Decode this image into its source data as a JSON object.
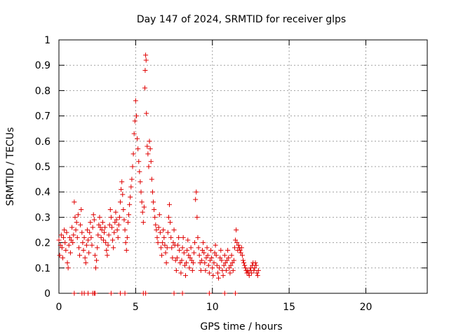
{
  "chart_data": {
    "type": "scatter",
    "title": "Day 147 of 2024, SRMTID for receiver glps",
    "xlabel": "GPS time / hours",
    "ylabel": "SRMTID / TECUs",
    "xlim": [
      0,
      24
    ],
    "ylim": [
      0,
      1
    ],
    "xticks": [
      0,
      5,
      10,
      15,
      20
    ],
    "xtick_labels": [
      "0",
      "5",
      "10",
      "15",
      "20"
    ],
    "yticks": [
      0,
      0.1,
      0.2,
      0.3,
      0.4,
      0.5,
      0.6,
      0.7,
      0.8,
      0.9,
      1
    ],
    "ytick_labels": [
      "0",
      "0.1",
      "0.2",
      "0.3",
      "0.4",
      "0.5",
      "0.6",
      "0.7",
      "0.8",
      "0.9",
      "1"
    ],
    "grid": true,
    "marker": "+",
    "marker_color": "#e00000",
    "series": [
      {
        "name": "SRMTID",
        "points": [
          [
            0.0,
            0.21
          ],
          [
            0.05,
            0.15
          ],
          [
            0.1,
            0.19
          ],
          [
            0.15,
            0.23
          ],
          [
            0.2,
            0.18
          ],
          [
            0.25,
            0.14
          ],
          [
            0.3,
            0.22
          ],
          [
            0.35,
            0.25
          ],
          [
            0.4,
            0.2
          ],
          [
            0.45,
            0.17
          ],
          [
            0.5,
            0.24
          ],
          [
            0.55,
            0.12
          ],
          [
            0.6,
            0.1
          ],
          [
            0.65,
            0.19
          ],
          [
            0.7,
            0.22
          ],
          [
            0.75,
            0.16
          ],
          [
            0.8,
            0.21
          ],
          [
            0.85,
            0.26
          ],
          [
            0.9,
            0.2
          ],
          [
            0.95,
            0.23
          ],
          [
            1.0,
            0.36
          ],
          [
            1.05,
            0.3
          ],
          [
            1.1,
            0.25
          ],
          [
            1.15,
            0.28
          ],
          [
            1.2,
            0.22
          ],
          [
            1.25,
            0.31
          ],
          [
            1.3,
            0.18
          ],
          [
            1.35,
            0.15
          ],
          [
            1.4,
            0.27
          ],
          [
            1.45,
            0.33
          ],
          [
            1.5,
            0.24
          ],
          [
            1.55,
            0.2
          ],
          [
            1.6,
            0.17
          ],
          [
            1.65,
            0.22
          ],
          [
            1.7,
            0.14
          ],
          [
            1.75,
            0.12
          ],
          [
            1.8,
            0.19
          ],
          [
            1.85,
            0.25
          ],
          [
            1.9,
            0.21
          ],
          [
            1.95,
            0.16
          ],
          [
            2.0,
            0.24
          ],
          [
            2.05,
            0.28
          ],
          [
            2.1,
            0.22
          ],
          [
            2.15,
            0.19
          ],
          [
            2.2,
            0.26
          ],
          [
            2.25,
            0.31
          ],
          [
            2.3,
            0.29
          ],
          [
            2.35,
            0.15
          ],
          [
            2.4,
            0.1
          ],
          [
            2.45,
            0.13
          ],
          [
            2.5,
            0.18
          ],
          [
            2.55,
            0.23
          ],
          [
            2.6,
            0.27
          ],
          [
            2.65,
            0.3
          ],
          [
            2.7,
            0.26
          ],
          [
            2.75,
            0.22
          ],
          [
            2.8,
            0.25
          ],
          [
            2.85,
            0.28
          ],
          [
            2.9,
            0.21
          ],
          [
            2.95,
            0.24
          ],
          [
            3.0,
            0.26
          ],
          [
            3.05,
            0.2
          ],
          [
            3.1,
            0.17
          ],
          [
            3.15,
            0.15
          ],
          [
            3.2,
            0.19
          ],
          [
            3.25,
            0.23
          ],
          [
            3.3,
            0.27
          ],
          [
            3.35,
            0.33
          ],
          [
            3.4,
            0.3
          ],
          [
            3.45,
            0.26
          ],
          [
            3.5,
            0.21
          ],
          [
            3.55,
            0.18
          ],
          [
            3.6,
            0.24
          ],
          [
            3.65,
            0.28
          ],
          [
            3.7,
            0.32
          ],
          [
            3.75,
            0.29
          ],
          [
            3.8,
            0.25
          ],
          [
            3.85,
            0.22
          ],
          [
            3.9,
            0.27
          ],
          [
            3.95,
            0.3
          ],
          [
            4.0,
            0.36
          ],
          [
            4.05,
            0.41
          ],
          [
            4.1,
            0.44
          ],
          [
            4.15,
            0.39
          ],
          [
            4.2,
            0.33
          ],
          [
            4.25,
            0.29
          ],
          [
            4.3,
            0.25
          ],
          [
            4.35,
            0.2
          ],
          [
            4.4,
            0.17
          ],
          [
            4.45,
            0.22
          ],
          [
            4.5,
            0.28
          ],
          [
            4.55,
            0.31
          ],
          [
            4.6,
            0.35
          ],
          [
            4.65,
            0.38
          ],
          [
            4.7,
            0.42
          ],
          [
            4.75,
            0.45
          ],
          [
            4.8,
            0.5
          ],
          [
            4.85,
            0.55
          ],
          [
            4.9,
            0.63
          ],
          [
            4.95,
            0.68
          ],
          [
            5.0,
            0.76
          ],
          [
            5.05,
            0.7
          ],
          [
            5.1,
            0.61
          ],
          [
            5.15,
            0.57
          ],
          [
            5.2,
            0.52
          ],
          [
            5.25,
            0.48
          ],
          [
            5.3,
            0.44
          ],
          [
            5.35,
            0.4
          ],
          [
            5.4,
            0.36
          ],
          [
            5.45,
            0.32
          ],
          [
            5.5,
            0.28
          ],
          [
            5.55,
            0.34
          ],
          [
            5.6,
            0.81
          ],
          [
            5.62,
            0.88
          ],
          [
            5.65,
            0.94
          ],
          [
            5.68,
            0.92
          ],
          [
            5.7,
            0.71
          ],
          [
            5.75,
            0.58
          ],
          [
            5.8,
            0.55
          ],
          [
            5.85,
            0.5
          ],
          [
            5.9,
            0.6
          ],
          [
            5.95,
            0.57
          ],
          [
            6.0,
            0.52
          ],
          [
            6.05,
            0.45
          ],
          [
            6.1,
            0.4
          ],
          [
            6.15,
            0.36
          ],
          [
            6.2,
            0.33
          ],
          [
            6.25,
            0.3
          ],
          [
            6.3,
            0.27
          ],
          [
            6.35,
            0.25
          ],
          [
            6.4,
            0.22
          ],
          [
            6.45,
            0.2
          ],
          [
            6.5,
            0.26
          ],
          [
            6.55,
            0.31
          ],
          [
            6.6,
            0.24
          ],
          [
            6.65,
            0.18
          ],
          [
            6.7,
            0.15
          ],
          [
            6.75,
            0.2
          ],
          [
            6.8,
            0.25
          ],
          [
            6.85,
            0.22
          ],
          [
            6.9,
            0.19
          ],
          [
            6.95,
            0.16
          ],
          [
            7.0,
            0.12
          ],
          [
            7.05,
            0.18
          ],
          [
            7.1,
            0.24
          ],
          [
            7.15,
            0.3
          ],
          [
            7.2,
            0.35
          ],
          [
            7.25,
            0.28
          ],
          [
            7.3,
            0.22
          ],
          [
            7.35,
            0.18
          ],
          [
            7.4,
            0.14
          ],
          [
            7.45,
            0.2
          ],
          [
            7.5,
            0.25
          ],
          [
            7.55,
            0.19
          ],
          [
            7.6,
            0.13
          ],
          [
            7.65,
            0.09
          ],
          [
            7.7,
            0.14
          ],
          [
            7.75,
            0.19
          ],
          [
            7.8,
            0.22
          ],
          [
            7.85,
            0.17
          ],
          [
            7.9,
            0.12
          ],
          [
            7.95,
            0.08
          ],
          [
            8.0,
            0.13
          ],
          [
            8.05,
            0.18
          ],
          [
            8.1,
            0.22
          ],
          [
            8.15,
            0.16
          ],
          [
            8.2,
            0.11
          ],
          [
            8.25,
            0.07
          ],
          [
            8.3,
            0.12
          ],
          [
            8.35,
            0.17
          ],
          [
            8.4,
            0.21
          ],
          [
            8.45,
            0.15
          ],
          [
            8.5,
            0.1
          ],
          [
            8.55,
            0.14
          ],
          [
            8.6,
            0.18
          ],
          [
            8.65,
            0.13
          ],
          [
            8.7,
            0.09
          ],
          [
            8.75,
            0.12
          ],
          [
            8.8,
            0.16
          ],
          [
            8.85,
            0.2
          ],
          [
            8.9,
            0.37
          ],
          [
            8.95,
            0.4
          ],
          [
            9.0,
            0.3
          ],
          [
            9.05,
            0.22
          ],
          [
            9.1,
            0.18
          ],
          [
            9.15,
            0.15
          ],
          [
            9.2,
            0.12
          ],
          [
            9.25,
            0.09
          ],
          [
            9.3,
            0.13
          ],
          [
            9.35,
            0.17
          ],
          [
            9.4,
            0.2
          ],
          [
            9.45,
            0.16
          ],
          [
            9.5,
            0.12
          ],
          [
            9.55,
            0.09
          ],
          [
            9.6,
            0.14
          ],
          [
            9.65,
            0.18
          ],
          [
            9.7,
            0.15
          ],
          [
            9.75,
            0.11
          ],
          [
            9.8,
            0.08
          ],
          [
            9.85,
            0.13
          ],
          [
            9.9,
            0.17
          ],
          [
            9.95,
            0.14
          ],
          [
            10.0,
            0.1
          ],
          [
            10.05,
            0.07
          ],
          [
            10.1,
            0.12
          ],
          [
            10.15,
            0.16
          ],
          [
            10.2,
            0.19
          ],
          [
            10.25,
            0.15
          ],
          [
            10.3,
            0.11
          ],
          [
            10.35,
            0.08
          ],
          [
            10.4,
            0.06
          ],
          [
            10.45,
            0.1
          ],
          [
            10.5,
            0.14
          ],
          [
            10.55,
            0.17
          ],
          [
            10.6,
            0.13
          ],
          [
            10.65,
            0.09
          ],
          [
            10.7,
            0.07
          ],
          [
            10.75,
            0.11
          ],
          [
            10.8,
            0.15
          ],
          [
            10.85,
            0.12
          ],
          [
            10.9,
            0.09
          ],
          [
            10.95,
            0.13
          ],
          [
            11.0,
            0.17
          ],
          [
            11.05,
            0.14
          ],
          [
            11.1,
            0.1
          ],
          [
            11.15,
            0.08
          ],
          [
            11.2,
            0.11
          ],
          [
            11.25,
            0.15
          ],
          [
            11.3,
            0.12
          ],
          [
            11.35,
            0.09
          ],
          [
            11.4,
            0.13
          ],
          [
            11.45,
            0.18
          ],
          [
            11.5,
            0.21
          ],
          [
            11.55,
            0.25
          ],
          [
            11.6,
            0.2
          ],
          [
            11.65,
            0.17
          ],
          [
            11.7,
            0.19
          ],
          [
            11.75,
            0.18
          ],
          [
            11.8,
            0.17
          ],
          [
            11.85,
            0.16
          ],
          [
            11.9,
            0.18
          ],
          [
            11.95,
            0.15
          ],
          [
            12.0,
            0.13
          ],
          [
            12.05,
            0.12
          ],
          [
            12.1,
            0.11
          ],
          [
            12.15,
            0.1
          ],
          [
            12.2,
            0.09
          ],
          [
            12.25,
            0.08
          ],
          [
            12.3,
            0.09
          ],
          [
            12.35,
            0.08
          ],
          [
            12.4,
            0.07
          ],
          [
            12.45,
            0.09
          ],
          [
            12.5,
            0.1
          ],
          [
            12.55,
            0.08
          ],
          [
            12.6,
            0.11
          ],
          [
            12.65,
            0.12
          ],
          [
            12.7,
            0.09
          ],
          [
            12.75,
            0.1
          ],
          [
            12.8,
            0.12
          ],
          [
            12.85,
            0.11
          ],
          [
            12.9,
            0.08
          ],
          [
            12.95,
            0.07
          ],
          [
            13.0,
            0.09
          ],
          [
            1.0,
            0.0
          ],
          [
            1.5,
            0.0
          ],
          [
            1.65,
            0.0
          ],
          [
            1.9,
            0.0
          ],
          [
            2.2,
            0.0
          ],
          [
            2.3,
            0.0
          ],
          [
            2.35,
            0.0
          ],
          [
            3.4,
            0.0
          ],
          [
            4.0,
            0.0
          ],
          [
            4.3,
            0.0
          ],
          [
            5.5,
            0.0
          ],
          [
            5.65,
            0.0
          ],
          [
            7.5,
            0.0
          ],
          [
            8.05,
            0.0
          ],
          [
            9.8,
            0.0
          ],
          [
            10.8,
            0.0
          ],
          [
            11.5,
            0.0
          ]
        ]
      }
    ]
  }
}
